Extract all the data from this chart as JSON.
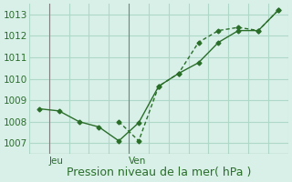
{
  "title": "",
  "xlabel": "Pression niveau de la mer( hPa )",
  "ylabel": "",
  "background_color": "#d8f0e8",
  "plot_bg_color": "#d8f0e8",
  "line_color": "#2a6e2a",
  "marker_color": "#2a6e2a",
  "grid_color": "#b0d8c8",
  "vline_color": "#808080",
  "ylim": [
    1006.5,
    1013.5
  ],
  "yticks": [
    1007,
    1008,
    1009,
    1010,
    1011,
    1012,
    1013
  ],
  "day_labels": [
    "Jeu",
    "Ven"
  ],
  "day_positions": [
    0.5,
    4.5
  ],
  "vline_positions": [
    0.5,
    4.5
  ],
  "series1_x": [
    0,
    1,
    2,
    3,
    4,
    5,
    6,
    7,
    8,
    9,
    10,
    11,
    12
  ],
  "series1_y": [
    1008.6,
    1008.5,
    1008.0,
    1007.75,
    1007.1,
    1007.95,
    1009.65,
    1010.25,
    1010.75,
    1011.7,
    1012.25,
    1012.25,
    1013.2
  ],
  "series2_x": [
    4,
    5,
    6,
    7,
    8,
    9,
    10,
    11,
    12
  ],
  "series2_y": [
    1008.0,
    1007.1,
    1009.65,
    1010.25,
    1011.7,
    1012.25,
    1012.4,
    1012.25,
    1013.2
  ],
  "xlim": [
    -0.5,
    12.5
  ],
  "xlabel_fontsize": 9,
  "tick_fontsize": 7.5,
  "day_fontsize": 7.5
}
